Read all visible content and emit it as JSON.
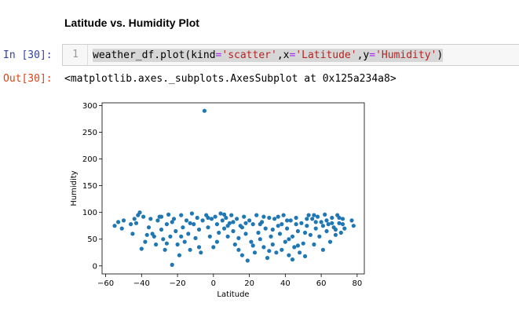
{
  "notebook": {
    "heading": "Latitude vs. Humidity Plot",
    "in_prompt": "In [30]:",
    "out_prompt": "Out[30]:",
    "line_number": "1",
    "code_tokens": [
      {
        "t": "weather_df.plot(kind",
        "c": "n"
      },
      {
        "t": "=",
        "c": "op"
      },
      {
        "t": "'scatter'",
        "c": "s"
      },
      {
        "t": ",x",
        "c": "n"
      },
      {
        "t": "=",
        "c": "op"
      },
      {
        "t": "'Latitude'",
        "c": "s"
      },
      {
        "t": ",y",
        "c": "n"
      },
      {
        "t": "=",
        "c": "op"
      },
      {
        "t": "'Humidity'",
        "c": "s"
      },
      {
        "t": ")",
        "c": "n"
      }
    ],
    "output_text": "<matplotlib.axes._subplots.AxesSubplot at 0x125a234a8>"
  },
  "colors": {
    "point": "#1f77b4",
    "in_prompt": "#303f9f",
    "out_prompt": "#d84315"
  },
  "chart_data": {
    "type": "scatter",
    "title": "",
    "xlabel": "Latitude",
    "ylabel": "Humidity",
    "xlim": [
      -62,
      84
    ],
    "ylim": [
      -15,
      305
    ],
    "xticks": [
      -60,
      -40,
      -20,
      0,
      20,
      40,
      60,
      80
    ],
    "yticks": [
      0,
      50,
      100,
      150,
      200,
      250,
      300
    ],
    "grid": false,
    "points": [
      [
        -5,
        290
      ],
      [
        -23,
        2
      ],
      [
        -55,
        75
      ],
      [
        -53,
        82
      ],
      [
        -51,
        70
      ],
      [
        -46,
        78
      ],
      [
        -45,
        60
      ],
      [
        -44,
        88
      ],
      [
        -42,
        95
      ],
      [
        -41,
        100
      ],
      [
        -40,
        32
      ],
      [
        -38,
        45
      ],
      [
        -36,
        72
      ],
      [
        -35,
        88
      ],
      [
        -34,
        60
      ],
      [
        -33,
        55
      ],
      [
        -32,
        40
      ],
      [
        -31,
        85
      ],
      [
        -30,
        92
      ],
      [
        -29,
        68
      ],
      [
        -28,
        50
      ],
      [
        -27,
        30
      ],
      [
        -26,
        78
      ],
      [
        -25,
        96
      ],
      [
        -24,
        55
      ],
      [
        -22,
        88
      ],
      [
        -21,
        65
      ],
      [
        -20,
        40
      ],
      [
        -19,
        20
      ],
      [
        -18,
        95
      ],
      [
        -17,
        72
      ],
      [
        -16,
        45
      ],
      [
        -15,
        85
      ],
      [
        -14,
        60
      ],
      [
        -13,
        30
      ],
      [
        -12,
        98
      ],
      [
        -11,
        78
      ],
      [
        -10,
        52
      ],
      [
        -9,
        90
      ],
      [
        -8,
        68
      ],
      [
        -7,
        25
      ],
      [
        -6,
        85
      ],
      [
        -4,
        95
      ],
      [
        -3,
        72
      ],
      [
        -2,
        55
      ],
      [
        -1,
        88
      ],
      [
        0,
        35
      ],
      [
        1,
        92
      ],
      [
        2,
        78
      ],
      [
        3,
        62
      ],
      [
        4,
        98
      ],
      [
        5,
        85
      ],
      [
        6,
        70
      ],
      [
        7,
        90
      ],
      [
        8,
        55
      ],
      [
        9,
        80
      ],
      [
        10,
        95
      ],
      [
        11,
        65
      ],
      [
        12,
        40
      ],
      [
        13,
        88
      ],
      [
        14,
        30
      ],
      [
        15,
        75
      ],
      [
        16,
        20
      ],
      [
        17,
        92
      ],
      [
        18,
        60
      ],
      [
        19,
        10
      ],
      [
        20,
        85
      ],
      [
        21,
        45
      ],
      [
        22,
        78
      ],
      [
        23,
        25
      ],
      [
        24,
        95
      ],
      [
        25,
        62
      ],
      [
        26,
        50
      ],
      [
        27,
        82
      ],
      [
        28,
        35
      ],
      [
        29,
        70
      ],
      [
        30,
        15
      ],
      [
        31,
        90
      ],
      [
        32,
        55
      ],
      [
        33,
        40
      ],
      [
        34,
        88
      ],
      [
        35,
        25
      ],
      [
        36,
        75
      ],
      [
        37,
        60
      ],
      [
        38,
        30
      ],
      [
        39,
        95
      ],
      [
        40,
        45
      ],
      [
        41,
        70
      ],
      [
        42,
        20
      ],
      [
        43,
        85
      ],
      [
        44,
        55
      ],
      [
        45,
        35
      ],
      [
        46,
        90
      ],
      [
        47,
        65
      ],
      [
        48,
        25
      ],
      [
        49,
        80
      ],
      [
        50,
        42
      ],
      [
        51,
        18
      ],
      [
        52,
        75
      ],
      [
        53,
        95
      ],
      [
        54,
        58
      ],
      [
        55,
        88
      ],
      [
        56,
        40
      ],
      [
        57,
        70
      ],
      [
        58,
        92
      ],
      [
        59,
        55
      ],
      [
        60,
        82
      ],
      [
        61,
        30
      ],
      [
        62,
        96
      ],
      [
        63,
        65
      ],
      [
        64,
        78
      ],
      [
        65,
        45
      ],
      [
        66,
        90
      ],
      [
        67,
        72
      ],
      [
        68,
        58
      ],
      [
        69,
        95
      ],
      [
        70,
        80
      ],
      [
        71,
        62
      ],
      [
        72,
        88
      ],
      [
        73,
        70
      ],
      [
        77,
        85
      ],
      [
        78,
        75
      ],
      [
        -43,
        80
      ],
      [
        -37,
        58
      ],
      [
        -23,
        82
      ],
      [
        -18,
        55
      ],
      [
        -8,
        35
      ],
      [
        2,
        45
      ],
      [
        8,
        75
      ],
      [
        14,
        52
      ],
      [
        18,
        80
      ],
      [
        22,
        38
      ],
      [
        28,
        92
      ],
      [
        33,
        68
      ],
      [
        38,
        78
      ],
      [
        42,
        50
      ],
      [
        47,
        38
      ],
      [
        52,
        88
      ],
      [
        57,
        82
      ],
      [
        61,
        75
      ],
      [
        66,
        80
      ],
      [
        70,
        90
      ],
      [
        -50,
        85
      ],
      [
        -39,
        92
      ],
      [
        -29,
        92
      ],
      [
        -13,
        80
      ],
      [
        -3,
        90
      ],
      [
        6,
        96
      ],
      [
        11,
        82
      ],
      [
        16,
        72
      ],
      [
        26,
        78
      ],
      [
        36,
        92
      ],
      [
        41,
        85
      ],
      [
        46,
        78
      ],
      [
        51,
        62
      ],
      [
        56,
        95
      ],
      [
        63,
        85
      ],
      [
        68,
        68
      ],
      [
        72,
        78
      ],
      [
        -26,
        42
      ],
      [
        31,
        28
      ],
      [
        44,
        12
      ]
    ]
  }
}
